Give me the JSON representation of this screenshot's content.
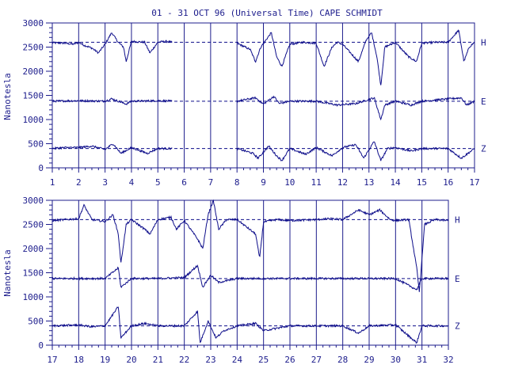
{
  "chart_data": [
    {
      "type": "line",
      "title": "01 - 31 OCT 96 (Universal Time) CAPE SCHMIDT",
      "ylabel": "Nanotesla",
      "xlabel": "",
      "xlim": [
        1,
        17
      ],
      "ylim": [
        0,
        3000
      ],
      "x_ticks": [
        1,
        2,
        3,
        4,
        5,
        6,
        7,
        8,
        9,
        10,
        11,
        12,
        13,
        14,
        15,
        16,
        17
      ],
      "y_ticks": [
        0,
        500,
        1000,
        1500,
        2000,
        2500,
        3000
      ],
      "grid": "vertical day lines",
      "series": [
        {
          "name": "H",
          "baseline": 2600,
          "data_gaps": [
            [
              5.55,
              8.0
            ]
          ],
          "values": [
            [
              1.0,
              2590
            ],
            [
              1.5,
              2580
            ],
            [
              1.8,
              2560
            ],
            [
              2.0,
              2600
            ],
            [
              2.2,
              2540
            ],
            [
              2.5,
              2480
            ],
            [
              2.75,
              2380
            ],
            [
              3.0,
              2560
            ],
            [
              3.25,
              2800
            ],
            [
              3.5,
              2600
            ],
            [
              3.7,
              2500
            ],
            [
              3.8,
              2200
            ],
            [
              4.0,
              2620
            ],
            [
              4.5,
              2600
            ],
            [
              4.7,
              2380
            ],
            [
              5.0,
              2600
            ],
            [
              5.3,
              2620
            ],
            [
              5.55,
              2600
            ],
            [
              8.0,
              2580
            ],
            [
              8.5,
              2450
            ],
            [
              8.7,
              2200
            ],
            [
              8.9,
              2500
            ],
            [
              9.3,
              2800
            ],
            [
              9.5,
              2300
            ],
            [
              9.7,
              2100
            ],
            [
              10.0,
              2560
            ],
            [
              10.5,
              2600
            ],
            [
              11.0,
              2580
            ],
            [
              11.3,
              2100
            ],
            [
              11.6,
              2500
            ],
            [
              11.8,
              2600
            ],
            [
              12.0,
              2560
            ],
            [
              12.6,
              2200
            ],
            [
              12.9,
              2650
            ],
            [
              13.1,
              2800
            ],
            [
              13.3,
              2300
            ],
            [
              13.45,
              1700
            ],
            [
              13.6,
              2500
            ],
            [
              14.0,
              2600
            ],
            [
              14.5,
              2300
            ],
            [
              14.8,
              2200
            ],
            [
              15.0,
              2580
            ],
            [
              15.5,
              2600
            ],
            [
              16.0,
              2600
            ],
            [
              16.4,
              2850
            ],
            [
              16.6,
              2200
            ],
            [
              16.8,
              2500
            ],
            [
              17.0,
              2600
            ]
          ]
        },
        {
          "name": "E",
          "baseline": 1380,
          "data_gaps": [
            [
              5.55,
              8.0
            ]
          ],
          "values": [
            [
              1.0,
              1380
            ],
            [
              2.0,
              1390
            ],
            [
              3.0,
              1380
            ],
            [
              3.25,
              1430
            ],
            [
              3.5,
              1380
            ],
            [
              3.8,
              1320
            ],
            [
              4.0,
              1380
            ],
            [
              5.0,
              1390
            ],
            [
              5.55,
              1380
            ],
            [
              8.0,
              1380
            ],
            [
              8.7,
              1450
            ],
            [
              9.0,
              1320
            ],
            [
              9.4,
              1480
            ],
            [
              9.6,
              1330
            ],
            [
              10.0,
              1380
            ],
            [
              11.0,
              1380
            ],
            [
              11.8,
              1300
            ],
            [
              12.5,
              1330
            ],
            [
              13.2,
              1450
            ],
            [
              13.45,
              1000
            ],
            [
              13.6,
              1300
            ],
            [
              14.0,
              1380
            ],
            [
              14.6,
              1300
            ],
            [
              15.0,
              1380
            ],
            [
              16.5,
              1450
            ],
            [
              16.7,
              1300
            ],
            [
              17.0,
              1380
            ]
          ]
        },
        {
          "name": "Z",
          "baseline": 400,
          "data_gaps": [
            [
              5.55,
              8.0
            ]
          ],
          "values": [
            [
              1.0,
              400
            ],
            [
              1.5,
              420
            ],
            [
              2.0,
              420
            ],
            [
              2.5,
              450
            ],
            [
              3.0,
              380
            ],
            [
              3.3,
              500
            ],
            [
              3.6,
              300
            ],
            [
              4.0,
              420
            ],
            [
              4.6,
              300
            ],
            [
              5.0,
              400
            ],
            [
              5.55,
              400
            ],
            [
              8.0,
              400
            ],
            [
              8.6,
              300
            ],
            [
              8.8,
              200
            ],
            [
              9.2,
              450
            ],
            [
              9.5,
              250
            ],
            [
              9.7,
              150
            ],
            [
              10.0,
              400
            ],
            [
              10.6,
              280
            ],
            [
              11.0,
              420
            ],
            [
              11.6,
              250
            ],
            [
              12.0,
              420
            ],
            [
              12.5,
              480
            ],
            [
              12.8,
              200
            ],
            [
              13.2,
              550
            ],
            [
              13.45,
              150
            ],
            [
              13.7,
              400
            ],
            [
              14.0,
              420
            ],
            [
              14.6,
              350
            ],
            [
              15.0,
              400
            ],
            [
              16.0,
              400
            ],
            [
              16.5,
              200
            ],
            [
              17.0,
              400
            ]
          ]
        }
      ]
    },
    {
      "type": "line",
      "title": "",
      "ylabel": "Nanotesla",
      "xlabel": "",
      "xlim": [
        17,
        32
      ],
      "ylim": [
        0,
        3000
      ],
      "x_ticks": [
        17,
        18,
        19,
        20,
        21,
        22,
        23,
        24,
        25,
        26,
        27,
        28,
        29,
        30,
        31,
        32
      ],
      "y_ticks": [
        0,
        500,
        1000,
        1500,
        2000,
        2500,
        3000
      ],
      "grid": "vertical day lines",
      "series": [
        {
          "name": "H",
          "baseline": 2600,
          "data_gaps": [],
          "values": [
            [
              17.0,
              2580
            ],
            [
              17.5,
              2600
            ],
            [
              18.0,
              2620
            ],
            [
              18.2,
              2900
            ],
            [
              18.5,
              2600
            ],
            [
              19.0,
              2560
            ],
            [
              19.3,
              2700
            ],
            [
              19.5,
              2300
            ],
            [
              19.6,
              1700
            ],
            [
              19.8,
              2500
            ],
            [
              20.0,
              2600
            ],
            [
              20.5,
              2400
            ],
            [
              20.7,
              2300
            ],
            [
              21.0,
              2600
            ],
            [
              21.5,
              2650
            ],
            [
              21.7,
              2400
            ],
            [
              22.0,
              2580
            ],
            [
              22.5,
              2200
            ],
            [
              22.7,
              2000
            ],
            [
              22.9,
              2700
            ],
            [
              23.1,
              3000
            ],
            [
              23.3,
              2400
            ],
            [
              23.6,
              2600
            ],
            [
              24.0,
              2600
            ],
            [
              24.7,
              2300
            ],
            [
              24.85,
              1800
            ],
            [
              25.0,
              2550
            ],
            [
              25.5,
              2600
            ],
            [
              26.0,
              2580
            ],
            [
              27.0,
              2600
            ],
            [
              27.5,
              2620
            ],
            [
              28.0,
              2600
            ],
            [
              28.6,
              2800
            ],
            [
              29.0,
              2700
            ],
            [
              29.4,
              2800
            ],
            [
              29.8,
              2600
            ],
            [
              30.0,
              2580
            ],
            [
              30.5,
              2600
            ],
            [
              30.8,
              1600
            ],
            [
              30.9,
              1100
            ],
            [
              31.1,
              2500
            ],
            [
              31.5,
              2600
            ],
            [
              32.0,
              2580
            ]
          ]
        },
        {
          "name": "E",
          "baseline": 1380,
          "data_gaps": [],
          "values": [
            [
              17.0,
              1380
            ],
            [
              18.0,
              1380
            ],
            [
              19.0,
              1380
            ],
            [
              19.5,
              1600
            ],
            [
              19.6,
              1200
            ],
            [
              20.0,
              1380
            ],
            [
              21.0,
              1380
            ],
            [
              22.0,
              1400
            ],
            [
              22.5,
              1650
            ],
            [
              22.7,
              1200
            ],
            [
              23.0,
              1450
            ],
            [
              23.3,
              1300
            ],
            [
              24.0,
              1380
            ],
            [
              25.0,
              1380
            ],
            [
              26.0,
              1380
            ],
            [
              27.0,
              1380
            ],
            [
              28.0,
              1380
            ],
            [
              29.0,
              1380
            ],
            [
              30.0,
              1380
            ],
            [
              30.8,
              1150
            ],
            [
              31.0,
              1380
            ],
            [
              32.0,
              1380
            ]
          ]
        },
        {
          "name": "Z",
          "baseline": 400,
          "data_gaps": [],
          "values": [
            [
              17.0,
              400
            ],
            [
              18.0,
              420
            ],
            [
              18.5,
              380
            ],
            [
              19.0,
              400
            ],
            [
              19.5,
              800
            ],
            [
              19.6,
              150
            ],
            [
              20.0,
              400
            ],
            [
              20.5,
              450
            ],
            [
              21.0,
              400
            ],
            [
              22.0,
              400
            ],
            [
              22.5,
              700
            ],
            [
              22.6,
              50
            ],
            [
              22.9,
              500
            ],
            [
              23.2,
              150
            ],
            [
              23.5,
              300
            ],
            [
              24.0,
              400
            ],
            [
              24.7,
              450
            ],
            [
              25.0,
              300
            ],
            [
              26.0,
              400
            ],
            [
              27.0,
              400
            ],
            [
              28.0,
              400
            ],
            [
              28.6,
              250
            ],
            [
              29.0,
              400
            ],
            [
              30.0,
              420
            ],
            [
              30.8,
              50
            ],
            [
              31.0,
              400
            ],
            [
              32.0,
              400
            ]
          ]
        }
      ]
    }
  ],
  "colors": {
    "line": "#0d0d8a",
    "axis": "#1c1c8c",
    "background": "#ffffff"
  }
}
